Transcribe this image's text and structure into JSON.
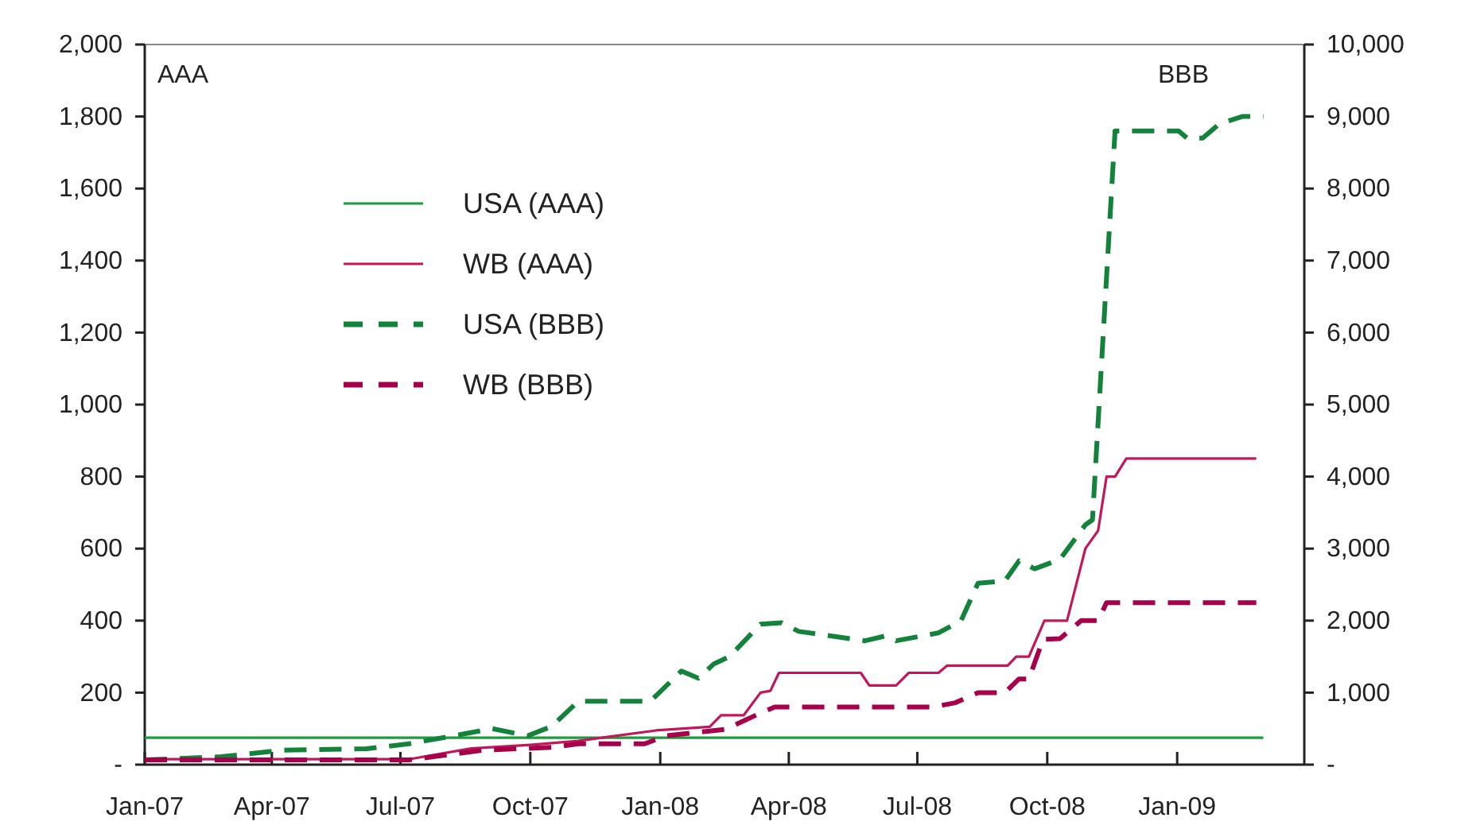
{
  "chart_data": {
    "type": "line",
    "annotations": [
      "AAA",
      "BBB"
    ],
    "xlim": [
      "2007-01-01",
      "2009-04-01"
    ],
    "xticks": [
      {
        "value": "2007-01",
        "label": "Jan-07"
      },
      {
        "value": "2007-04",
        "label": "Apr-07"
      },
      {
        "value": "2007-07",
        "label": "Jul-07"
      },
      {
        "value": "2007-10",
        "label": "Oct-07"
      },
      {
        "value": "2008-01",
        "label": "Jan-08"
      },
      {
        "value": "2008-04",
        "label": "Apr-08"
      },
      {
        "value": "2008-07",
        "label": "Jul-08"
      },
      {
        "value": "2008-10",
        "label": "Oct-08"
      },
      {
        "value": "2009-01",
        "label": "Jan-09"
      }
    ],
    "ylim": [
      0,
      2000
    ],
    "yticks": [
      {
        "value": 0,
        "label": "-"
      },
      200,
      400,
      600,
      800,
      {
        "value": 1000,
        "label": "1,000"
      },
      {
        "value": 1200,
        "label": "1,200"
      },
      {
        "value": 1400,
        "label": "1,400"
      },
      {
        "value": 1600,
        "label": "1,600"
      },
      {
        "value": 1800,
        "label": "1,800"
      },
      {
        "value": 2000,
        "label": "2,000"
      }
    ],
    "y2lim": [
      0,
      10000
    ],
    "y2ticks": [
      {
        "value": 0,
        "label": "-"
      },
      {
        "value": 1000,
        "label": "1,000"
      },
      {
        "value": 2000,
        "label": "2,000"
      },
      {
        "value": 3000,
        "label": "3,000"
      },
      {
        "value": 4000,
        "label": "4,000"
      },
      {
        "value": 5000,
        "label": "5,000"
      },
      {
        "value": 6000,
        "label": "6,000"
      },
      {
        "value": 7000,
        "label": "7,000"
      },
      {
        "value": 8000,
        "label": "8,000"
      },
      {
        "value": 9000,
        "label": "9,000"
      },
      {
        "value": 10000,
        "label": "10,000"
      }
    ],
    "grid": false,
    "legend": "top left",
    "marker": "none",
    "series": [
      {
        "name": "USA (AAA)",
        "color": "#1f9a3c",
        "line_style": "solid",
        "x": [
          "2007-01-01",
          "2009-03-03"
        ],
        "values": [
          75,
          75
        ]
      },
      {
        "name": "WB (AAA)",
        "color": "#c2185b",
        "line_style": "solid",
        "x": [
          "2007-01-01",
          "2007-07-07",
          "2007-08-20",
          "2007-10-01",
          "2007-11-04",
          "2007-12-29",
          "2008-02-05",
          "2008-02-13",
          "2008-02-29",
          "2008-03-12",
          "2008-03-19",
          "2008-03-25",
          "2008-05-22",
          "2008-05-28",
          "2008-06-16",
          "2008-06-25",
          "2008-07-16",
          "2008-07-22",
          "2008-09-03",
          "2008-09-09",
          "2008-09-18",
          "2008-09-29",
          "2008-10-15",
          "2008-10-28",
          "2008-11-06",
          "2008-11-12",
          "2008-11-18",
          "2008-11-26",
          "2009-02-26"
        ],
        "values": [
          15,
          15,
          45,
          55,
          66,
          95,
          105,
          137,
          137,
          200,
          205,
          255,
          255,
          220,
          220,
          255,
          255,
          275,
          275,
          300,
          300,
          400,
          400,
          600,
          650,
          800,
          800,
          850,
          850
        ]
      },
      {
        "name": "USA (BBB)",
        "color": "#13823a",
        "line_style": "dashed",
        "axis": "y2",
        "x": [
          "2007-01-01",
          "2007-02-24",
          "2007-04-08",
          "2007-06-07",
          "2007-07-07",
          "2007-08-13",
          "2007-09-04",
          "2007-09-29",
          "2007-10-16",
          "2007-11-04",
          "2007-12-25",
          "2008-01-16",
          "2008-01-28",
          "2008-02-08",
          "2008-02-19",
          "2008-03-12",
          "2008-03-27",
          "2008-04-08",
          "2008-05-25",
          "2008-06-09",
          "2008-06-16",
          "2008-07-16",
          "2008-08-01",
          "2008-08-13",
          "2008-09-01",
          "2008-09-11",
          "2008-09-22",
          "2008-10-10",
          "2008-10-28",
          "2008-11-02",
          "2008-11-18",
          "2009-01-02",
          "2009-01-08",
          "2009-01-19",
          "2009-01-31",
          "2009-02-16",
          "2009-03-03"
        ],
        "values": [
          65,
          110,
          200,
          220,
          290,
          420,
          500,
          400,
          530,
          880,
          880,
          1300,
          1200,
          1400,
          1500,
          1950,
          1970,
          1850,
          1720,
          1790,
          1720,
          1830,
          2000,
          2520,
          2550,
          2830,
          2720,
          2850,
          3330,
          3400,
          8800,
          8800,
          8700,
          8700,
          8900,
          9000,
          9000
        ]
      },
      {
        "name": "WB (BBB)",
        "color": "#a6004a",
        "line_style": "dashed",
        "axis": "y2",
        "x": [
          "2007-01-01",
          "2007-07-07",
          "2007-08-28",
          "2007-10-16",
          "2007-11-04",
          "2007-12-21",
          "2008-01-05",
          "2008-02-16",
          "2008-03-08",
          "2008-03-22",
          "2008-07-12",
          "2008-07-28",
          "2008-08-13",
          "2008-09-01",
          "2008-09-11",
          "2008-09-18",
          "2008-09-28",
          "2008-10-10",
          "2008-10-25",
          "2008-11-06",
          "2008-11-12",
          "2009-02-26"
        ],
        "values": [
          65,
          65,
          200,
          240,
          290,
          290,
          400,
          490,
          680,
          800,
          800,
          860,
          1000,
          1000,
          1190,
          1190,
          1740,
          1750,
          2000,
          2000,
          2250,
          2250
        ]
      }
    ]
  }
}
